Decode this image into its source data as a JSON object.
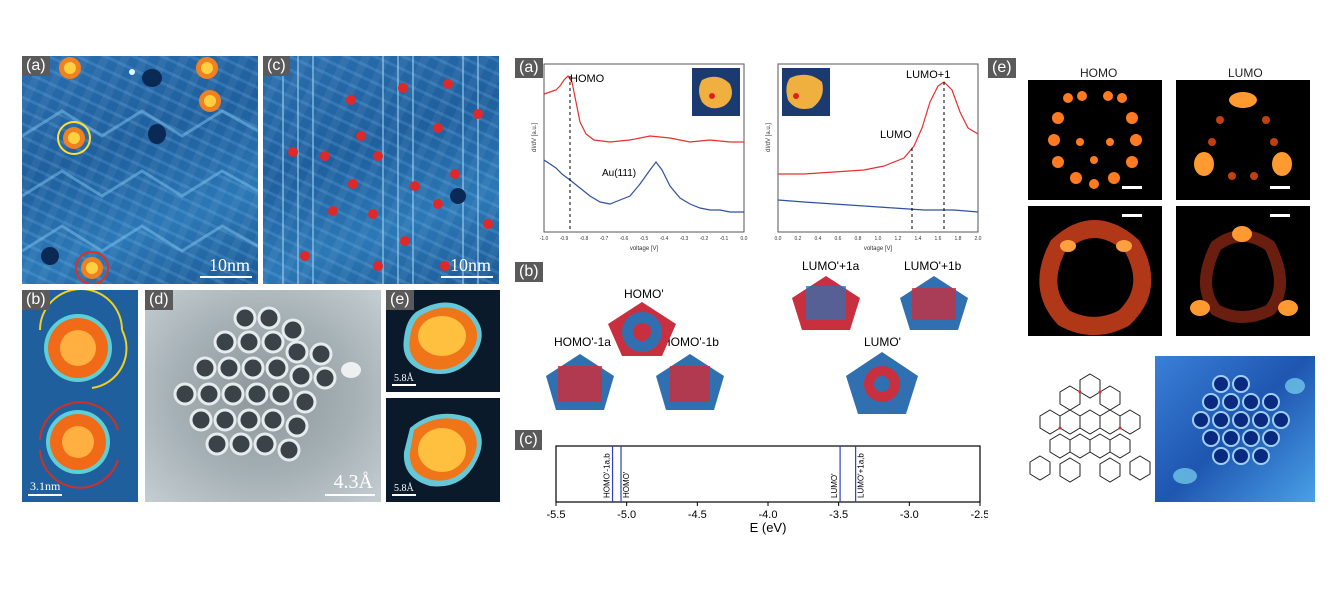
{
  "left_figure": {
    "panel_a": {
      "tag": "(a)",
      "scale": "10nm"
    },
    "panel_c": {
      "tag": "(c)",
      "scale": "10nm"
    },
    "panel_b": {
      "tag": "(b)",
      "scale": "3.1nm"
    },
    "panel_d": {
      "tag": "(d)",
      "scale": "4.3Å"
    },
    "panel_e": {
      "tag": "(e)",
      "scale_top": "5.8Å",
      "scale_bottom": "5.8Å"
    }
  },
  "middle_figure": {
    "panel_a": {
      "tag": "(a)",
      "ylabel": "dI/dV [a.u.]",
      "xlabel": "voltage [V]",
      "left_plot": {
        "labels": [
          "HOMO",
          "Au(111)"
        ],
        "x_ticks": [
          "-1.0",
          "-0.9",
          "-0.8",
          "-0.7",
          "-0.6",
          "-0.5",
          "-0.4",
          "-0.3",
          "-0.2",
          "-0.1",
          "0.0"
        ]
      },
      "right_plot": {
        "labels": [
          "LUMO",
          "LUMO+1"
        ],
        "x_ticks": [
          "0.0",
          "0.2",
          "0.4",
          "0.6",
          "0.8",
          "1.0",
          "1.2",
          "1.4",
          "1.6",
          "1.8",
          "2.0"
        ]
      }
    },
    "panel_b": {
      "tag": "(b)",
      "orbitals": [
        "HOMO'",
        "HOMO'-1a",
        "HOMO'-1b",
        "LUMO'+1a",
        "LUMO'+1b",
        "LUMO'"
      ]
    },
    "panel_c": {
      "tag": "(c)",
      "xlabel": "E (eV)",
      "x_ticks": [
        "-5.5",
        "-5.0",
        "-4.5",
        "-4.0",
        "-3.5",
        "-3.0",
        "-2.5"
      ],
      "levels": [
        {
          "label": "HOMO'-1a,b",
          "energy": -5.1
        },
        {
          "label": "HOMO'",
          "energy": -5.04
        },
        {
          "label": "LUMO'",
          "energy": -3.49
        },
        {
          "label": "LUMO'+1a,b",
          "energy": -3.38
        }
      ]
    }
  },
  "right_figure": {
    "tag": "(e)",
    "col_titles": [
      "HOMO",
      "LUMO"
    ]
  },
  "colors": {
    "red_curve": "#e53030",
    "blue_curve": "#3050a0",
    "level_line": "#3040c0",
    "tag_bg": "#5a5a5a"
  }
}
